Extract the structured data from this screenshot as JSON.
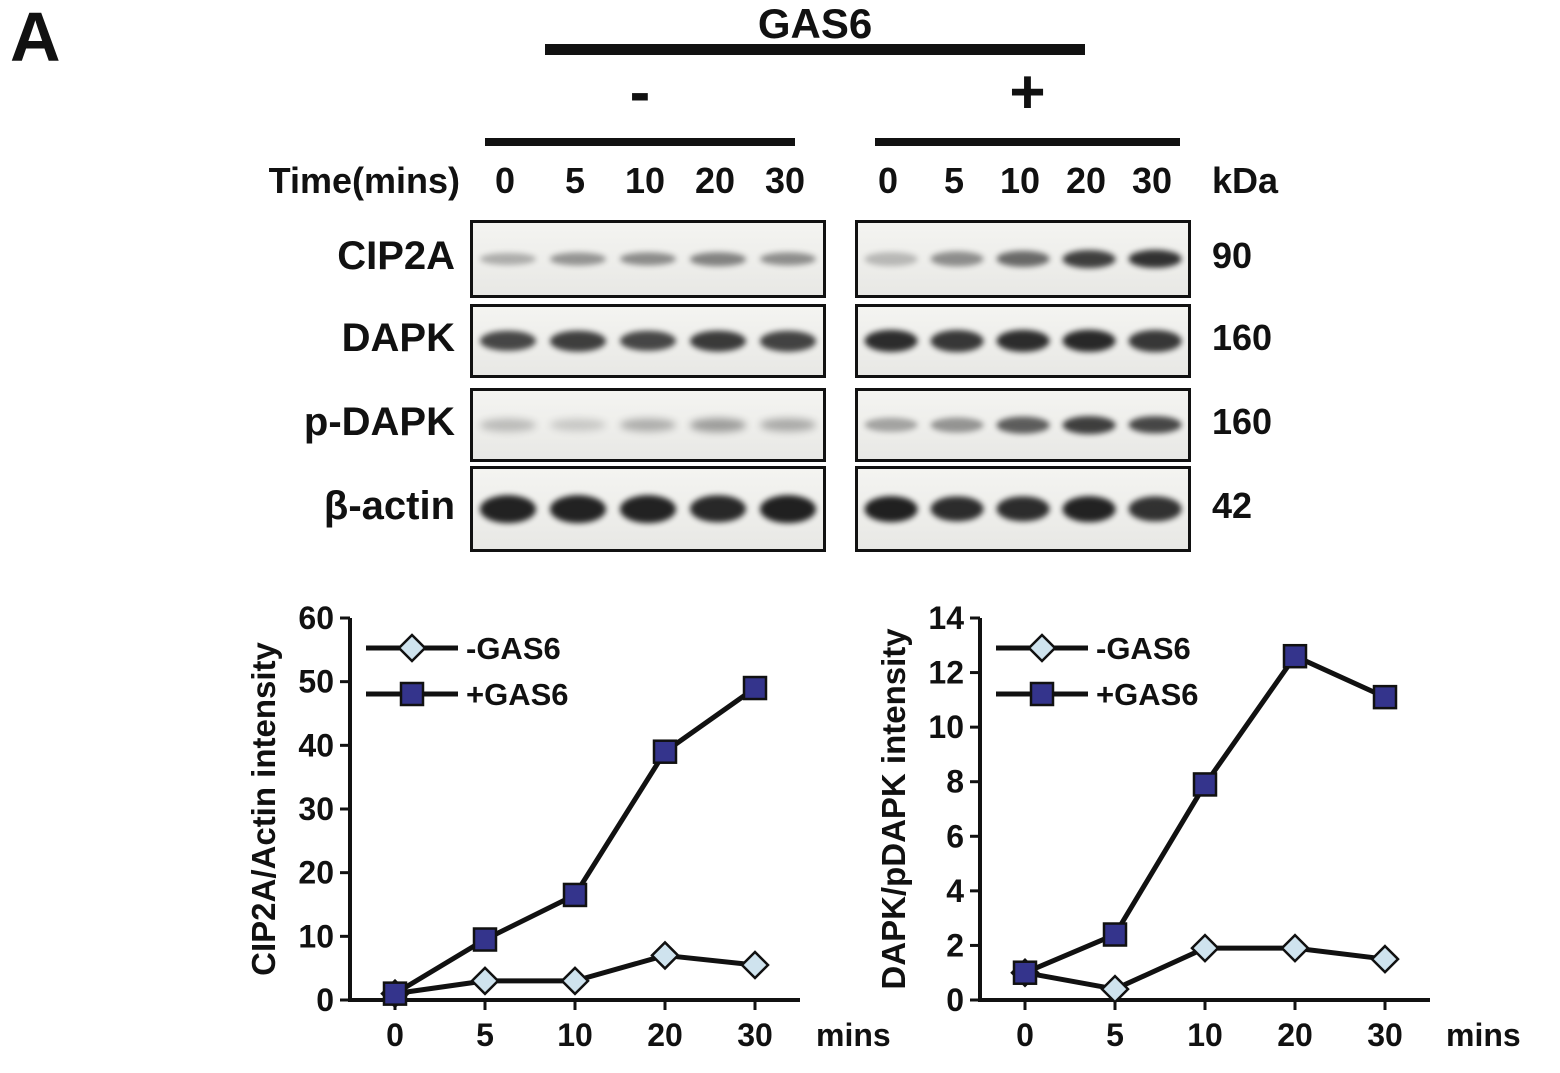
{
  "panel_label": "A",
  "blot_section": {
    "group_title": "GAS6",
    "minus_label": "-",
    "plus_label": "+",
    "time_label": "Time(mins)",
    "kda_label": "kDa",
    "times": [
      "0",
      "5",
      "10",
      "20",
      "30"
    ],
    "rows": [
      {
        "label": "CIP2A",
        "kda": "90",
        "left_bands": [
          0.3,
          0.42,
          0.46,
          0.5,
          0.45
        ],
        "right_bands": [
          0.25,
          0.45,
          0.62,
          0.82,
          0.88
        ]
      },
      {
        "label": "DAPK",
        "kda": "160",
        "left_bands": [
          0.78,
          0.82,
          0.78,
          0.84,
          0.8
        ],
        "right_bands": [
          0.9,
          0.85,
          0.9,
          0.92,
          0.85
        ]
      },
      {
        "label": "p-DAPK",
        "kda": "160",
        "left_bands": [
          0.24,
          0.18,
          0.3,
          0.38,
          0.32
        ],
        "right_bands": [
          0.35,
          0.42,
          0.68,
          0.82,
          0.78
        ]
      },
      {
        "label": "β-actin",
        "kda": "42",
        "left_bands": [
          0.95,
          0.95,
          0.95,
          0.92,
          0.96
        ],
        "right_bands": [
          0.96,
          0.9,
          0.9,
          0.95,
          0.88
        ]
      }
    ]
  },
  "chart_data": [
    {
      "type": "line",
      "ylabel": "CIP2A/Actin intensity",
      "xlabel": "mins",
      "categories": [
        "0",
        "5",
        "10",
        "20",
        "30"
      ],
      "ylim": [
        0,
        60
      ],
      "ytick_step": 10,
      "legend_position": "top-left",
      "grid": false,
      "series": [
        {
          "name": "-GAS6",
          "marker": "diamond",
          "fill": "#cfe3ee",
          "values": [
            1,
            3,
            3,
            7,
            5.5
          ]
        },
        {
          "name": "+GAS6",
          "marker": "square",
          "fill": "#34348c",
          "values": [
            1,
            9.5,
            16.5,
            39,
            49
          ]
        }
      ]
    },
    {
      "type": "line",
      "ylabel": "DAPK/pDAPK intensity",
      "xlabel": "mins",
      "categories": [
        "0",
        "5",
        "10",
        "20",
        "30"
      ],
      "ylim": [
        0,
        14
      ],
      "ytick_step": 2,
      "legend_position": "top-left",
      "grid": false,
      "series": [
        {
          "name": "-GAS6",
          "marker": "diamond",
          "fill": "#cfe3ee",
          "values": [
            1,
            0.4,
            1.9,
            1.9,
            1.5
          ]
        },
        {
          "name": "+GAS6",
          "marker": "square",
          "fill": "#34348c",
          "values": [
            1,
            2.4,
            7.9,
            12.6,
            11.1
          ]
        }
      ]
    }
  ]
}
